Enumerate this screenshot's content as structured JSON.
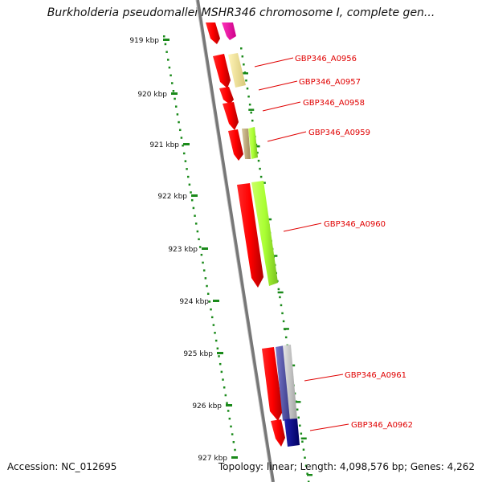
{
  "title": "Burkholderia pseudomallei MSHR346 chromosome I, complete gen...",
  "footer": {
    "accession": "Accession: NC_012695",
    "summary": "Topology: linear; Length: 4,098,576 bp; Genes: 4,262"
  },
  "ruler": {
    "ticks": [
      "919 kbp",
      "920 kbp",
      "921 kbp",
      "922 kbp",
      "923 kbp",
      "924 kbp",
      "925 kbp",
      "926 kbp",
      "927 kbp"
    ]
  },
  "colors": {
    "forward_gene": "#ff0000",
    "tick": "#1a8a1a",
    "backbone": "#888888",
    "label": "#e00000"
  },
  "genes": [
    {
      "label": "",
      "color": "#ff00aa"
    },
    {
      "label": "GBP346_A0956",
      "color": "#f0e4a0"
    },
    {
      "label": "GBP346_A0957",
      "color": "#ff0000"
    },
    {
      "label": "GBP346_A0958",
      "color": "#ff0000"
    },
    {
      "label": "GBP346_A0959",
      "color": "#aaff44"
    },
    {
      "label": "GBP346_A0960",
      "color": "#aaff44"
    },
    {
      "label": "GBP346_A0961",
      "color": "#6666aa"
    },
    {
      "label": "GBP346_A0962",
      "color": "#000088"
    }
  ]
}
